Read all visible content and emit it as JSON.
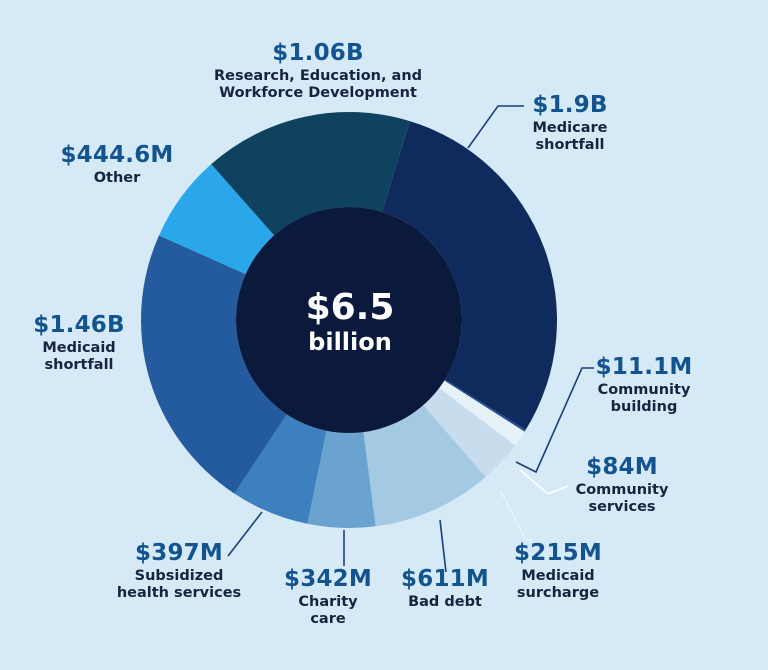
{
  "chart_data": {
    "type": "pie",
    "center": {
      "value": "$6.5",
      "unit": "billion"
    },
    "slices": [
      {
        "value_text": "$1.9B",
        "label": [
          "Medicare",
          "shortfall"
        ],
        "value": 1900,
        "color": "#0f2a5c"
      },
      {
        "value_text": "$11.1M",
        "label": [
          "Community",
          "building"
        ],
        "value": 11.1,
        "color": "#1f4e8f"
      },
      {
        "value_text": "$84M",
        "label": [
          "Community",
          "services"
        ],
        "value": 84,
        "color": "#e6f1f8"
      },
      {
        "value_text": "$215M",
        "label": [
          "Medicaid",
          "surcharge"
        ],
        "value": 215,
        "color": "#c7dcec"
      },
      {
        "value_text": "$611M",
        "label": [
          "Bad debt"
        ],
        "value": 611,
        "color": "#a4c9e2"
      },
      {
        "value_text": "$342M",
        "label": [
          "Charity",
          "care"
        ],
        "value": 342,
        "color": "#6aa3cf"
      },
      {
        "value_text": "$397M",
        "label": [
          "Subsidized",
          "health services"
        ],
        "value": 397,
        "color": "#3c80bd"
      },
      {
        "value_text": "$1.46B",
        "label": [
          "Medicaid",
          "shortfall"
        ],
        "value": 1460,
        "color": "#245a9e"
      },
      {
        "value_text": "$444.6M",
        "label": [
          "Other"
        ],
        "value": 444.6,
        "color": "#2aa7ea"
      },
      {
        "value_text": "$1.06B",
        "label": [
          "Research, Education, and",
          "Workforce Development"
        ],
        "value": 1060,
        "color": "#0f425e"
      }
    ]
  },
  "colors": {
    "background": "#d5eaf6",
    "center": "#0b1a3c",
    "value_text": "#13548f",
    "leader": "#1a3f7a"
  }
}
